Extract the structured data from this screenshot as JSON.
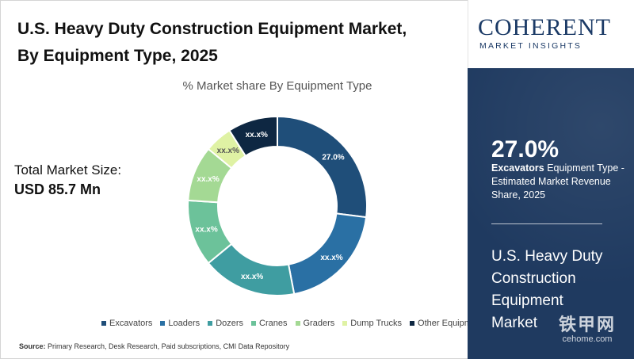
{
  "title": "U.S. Heavy Duty Construction Equipment Market, By Equipment Type, 2025",
  "total_market": {
    "label": "Total Market Size:",
    "value": "USD 85.7 Mn"
  },
  "source": {
    "label": "Source:",
    "text": "Primary Research, Desk Research, Paid subscriptions, CMI Data Repository"
  },
  "brand": {
    "name": "COHERENT",
    "sub": "MARKET INSIGHTS",
    "color": "#1b3a66"
  },
  "side_panel": {
    "highlight_value": "27.0%",
    "highlight_segment": "Excavators",
    "highlight_text": "Equipment Type - Estimated Market Revenue Share, 2025",
    "title": "U.S. Heavy Duty Construction Equipment Market",
    "background": "#1f3a60"
  },
  "watermark": {
    "main": "铁甲网",
    "sub": "cehome.com"
  },
  "chart_data": {
    "type": "donut",
    "title": "% Market share By Equipment Type",
    "legend_position": "bottom",
    "series": [
      {
        "name": "Excavators",
        "value": 27.0,
        "label": "27.0%",
        "color": "#1f4e79"
      },
      {
        "name": "Loaders",
        "value": 20.0,
        "label": "xx.x%",
        "color": "#2a70a4"
      },
      {
        "name": "Dozers",
        "value": 17.0,
        "label": "xx.x%",
        "color": "#3f9da1"
      },
      {
        "name": "Cranes",
        "value": 12.0,
        "label": "xx.x%",
        "color": "#6cc29a"
      },
      {
        "name": "Graders",
        "value": 10.0,
        "label": "xx.x%",
        "color": "#a4d994"
      },
      {
        "name": "Dump Trucks",
        "value": 5.0,
        "label": "xx.x%",
        "color": "#dff2a4"
      },
      {
        "name": "Other Equipment",
        "value": 9.0,
        "label": "xx.x%",
        "color": "#0e2742"
      }
    ]
  }
}
